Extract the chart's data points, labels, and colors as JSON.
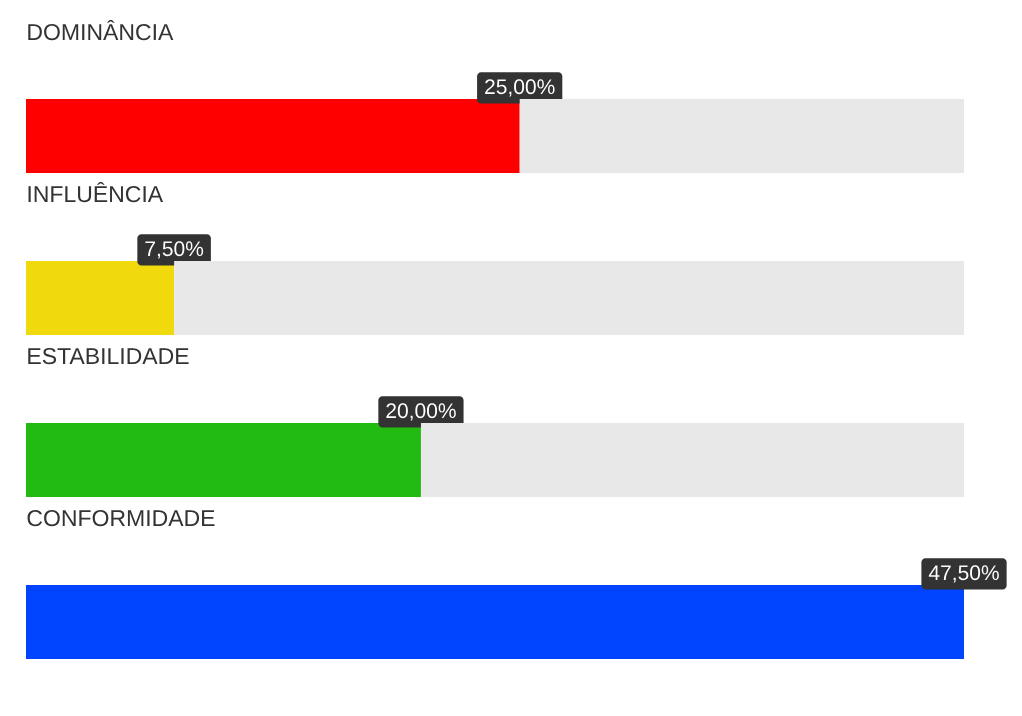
{
  "chart_data": {
    "type": "bar",
    "orientation": "horizontal",
    "stacked": true,
    "categories": [
      "DOMINÂNCIA",
      "INFLUÊNCIA",
      "ESTABILIDADE",
      "CONFORMIDADE"
    ],
    "series": [
      {
        "colors": [
          "#ff0000",
          "#f0d90c",
          "#22bb11",
          "#0044ff"
        ],
        "values": [
          25,
          7.5,
          20,
          47.5
        ],
        "value_labels": [
          "25,00%",
          "7,50%",
          "20,00%",
          "47,50%"
        ]
      },
      {
        "color": "#e8e8e8",
        "values": [
          22.5,
          40,
          27.5,
          0
        ]
      }
    ],
    "xlim": [
      0,
      47.5
    ],
    "tick_labels": "y"
  }
}
